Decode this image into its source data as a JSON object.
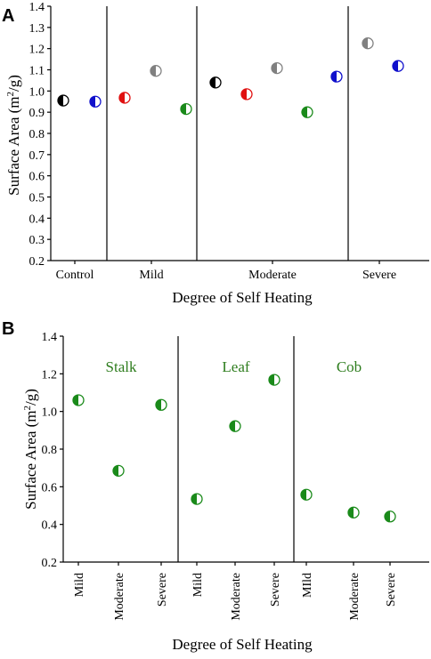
{
  "chart_data": [
    {
      "panel": "A",
      "type": "scatter",
      "xlabel": "Degree of Self Heating",
      "ylabel": "Surface Area (m²/g)",
      "ylim": [
        0.2,
        1.4
      ],
      "yticks": [
        "0.2",
        "0.3",
        "0.4",
        "0.5",
        "0.6",
        "0.7",
        "0.8",
        "0.9",
        "1.0",
        "1.1",
        "1.2",
        "1.3",
        "1.4"
      ],
      "groups": [
        "Control",
        "Mild",
        "Moderate",
        "Severe"
      ],
      "points": [
        {
          "group": "Control",
          "value": 0.955,
          "color": "#000000"
        },
        {
          "group": "Control",
          "value": 0.95,
          "color": "#1010cc"
        },
        {
          "group": "Mild",
          "value": 0.968,
          "color": "#e01010"
        },
        {
          "group": "Mild",
          "value": 1.095,
          "color": "#808080"
        },
        {
          "group": "Mild",
          "value": 0.915,
          "color": "#1a8a1a"
        },
        {
          "group": "Moderate",
          "value": 1.04,
          "color": "#000000"
        },
        {
          "group": "Moderate",
          "value": 0.985,
          "color": "#e01010"
        },
        {
          "group": "Moderate",
          "value": 1.108,
          "color": "#808080"
        },
        {
          "group": "Moderate",
          "value": 0.9,
          "color": "#1a8a1a"
        },
        {
          "group": "Moderate",
          "value": 1.068,
          "color": "#1010cc"
        },
        {
          "group": "Severe",
          "value": 1.225,
          "color": "#808080"
        },
        {
          "group": "Severe",
          "value": 1.118,
          "color": "#1010cc"
        }
      ]
    },
    {
      "panel": "B",
      "type": "scatter",
      "xlabel": "Degree of Self Heating",
      "ylabel": "Surface Area (m²/g)",
      "ylim": [
        0.2,
        1.4
      ],
      "yticks": [
        "0.2",
        "0.4",
        "0.6",
        "0.8",
        "1.0",
        "1.2",
        "1.4"
      ],
      "groups": [
        "Stalk",
        "Leaf",
        "Cob"
      ],
      "group_color": "#2e7d1e",
      "categories": [
        "Mild",
        "Moderate",
        "Severe",
        "Mild",
        "Moderate",
        "Severe",
        "MIld",
        "Moderate",
        "Severe"
      ],
      "points": [
        {
          "group": "Stalk",
          "category": "Mild",
          "value": 1.06,
          "color": "#1a8a1a"
        },
        {
          "group": "Stalk",
          "category": "Moderate",
          "value": 0.685,
          "color": "#1a8a1a"
        },
        {
          "group": "Stalk",
          "category": "Severe",
          "value": 1.035,
          "color": "#1a8a1a"
        },
        {
          "group": "Leaf",
          "category": "Mild",
          "value": 0.535,
          "color": "#1a8a1a"
        },
        {
          "group": "Leaf",
          "category": "Moderate",
          "value": 0.922,
          "color": "#1a8a1a"
        },
        {
          "group": "Leaf",
          "category": "Severe",
          "value": 1.168,
          "color": "#1a8a1a"
        },
        {
          "group": "Cob",
          "category": "MIld",
          "value": 0.558,
          "color": "#1a8a1a"
        },
        {
          "group": "Cob",
          "category": "Moderate",
          "value": 0.463,
          "color": "#1a8a1a"
        },
        {
          "group": "Cob",
          "category": "Severe",
          "value": 0.442,
          "color": "#1a8a1a"
        }
      ]
    }
  ]
}
